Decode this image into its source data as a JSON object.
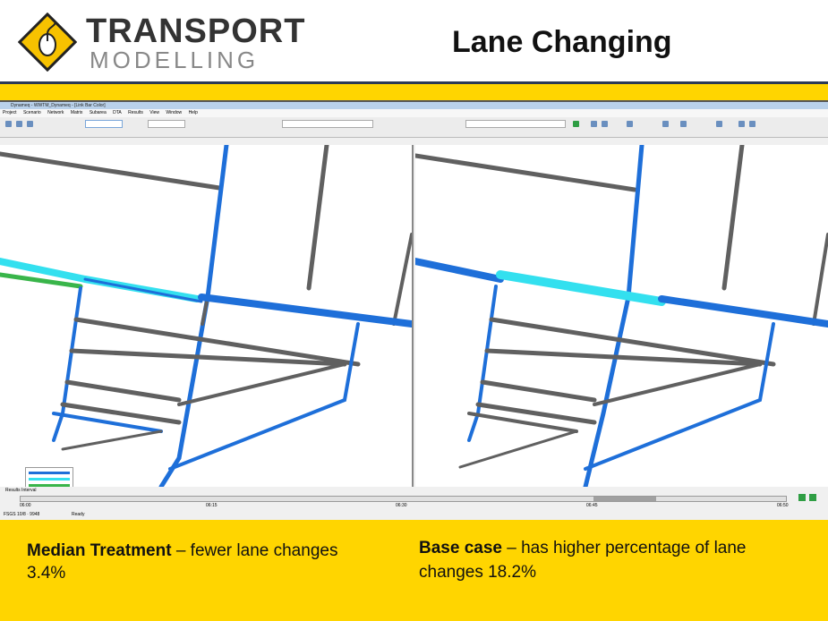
{
  "header": {
    "logo_line1": "TRANSPORT",
    "logo_line2": "MODELLING",
    "title": "Lane Changing"
  },
  "app": {
    "window_title": "Dynameq - WWTM_Dynameq - [Link Bar Color]",
    "menu": [
      "Project",
      "Scenario",
      "Network",
      "Matrix",
      "Subarea",
      "DTA",
      "Results",
      "View",
      "Window",
      "Help"
    ],
    "timeline_label": "Results Interval",
    "status_left": "FSGS 10/8 · 9948",
    "status_ready": "Ready",
    "time_ticks": [
      "06:00",
      "06:15",
      "06:30",
      "06:45",
      "06:50"
    ]
  },
  "captions": {
    "left_bold": "Median Treatment",
    "left_rest": " – fewer lane changes 3.4%",
    "right_bold": "Base case",
    "right_rest": " – has higher percentage of lane changes 18.2%"
  },
  "colors": {
    "accent_yellow": "#ffd500",
    "link_blue": "#1e6fd9",
    "link_cyan": "#33e0ef",
    "link_green": "#39b54a",
    "link_gray": "#606060"
  }
}
